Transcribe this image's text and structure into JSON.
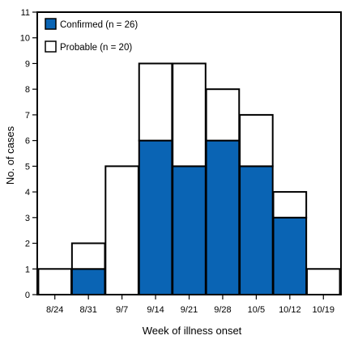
{
  "chart_data": {
    "type": "bar",
    "stacked": true,
    "categories": [
      "8/24",
      "8/31",
      "9/7",
      "9/14",
      "9/21",
      "9/28",
      "10/5",
      "10/12",
      "10/19"
    ],
    "series": [
      {
        "name": "Confirmed (n = 26)",
        "values": [
          0,
          1,
          0,
          6,
          5,
          6,
          5,
          3,
          0
        ],
        "color": "#0a64b4"
      },
      {
        "name": "Probable (n = 20)",
        "values": [
          1,
          1,
          5,
          3,
          4,
          2,
          2,
          1,
          1
        ],
        "color": "#ffffff"
      }
    ],
    "xlabel": "Week of illness onset",
    "ylabel": "No. of cases",
    "ylim": [
      0,
      11
    ],
    "yticks": [
      0,
      1,
      2,
      3,
      4,
      5,
      6,
      7,
      8,
      9,
      10,
      11
    ],
    "grid": false,
    "legend_position": "top-left"
  }
}
